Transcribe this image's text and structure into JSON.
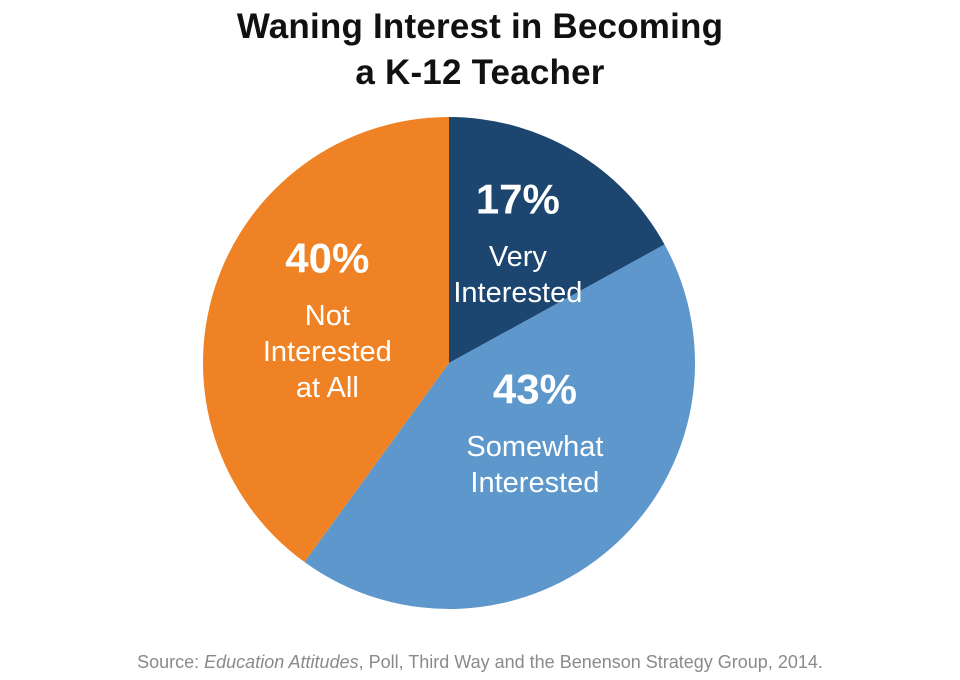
{
  "chart_data": {
    "type": "pie",
    "title_lines": [
      "Waning Interest in Becoming",
      "a K-12 Teacher"
    ],
    "start_angle_deg": 0,
    "direction": "clockwise",
    "slices": [
      {
        "label_lines": [
          "Very",
          "Interested"
        ],
        "value": 17,
        "value_label": "17%",
        "color": "#1c4570"
      },
      {
        "label_lines": [
          "Somewhat",
          "Interested"
        ],
        "value": 43,
        "value_label": "43%",
        "color": "#5d97cb"
      },
      {
        "label_lines": [
          "Not",
          "Interested",
          "at All"
        ],
        "value": 40,
        "value_label": "40%",
        "color": "#ee8224"
      }
    ],
    "legend": "none"
  },
  "source": {
    "prefix": "Source: ",
    "italic": "Education Attitudes",
    "suffix": ", Poll, Third Way and the Benenson Strategy Group, 2014."
  }
}
